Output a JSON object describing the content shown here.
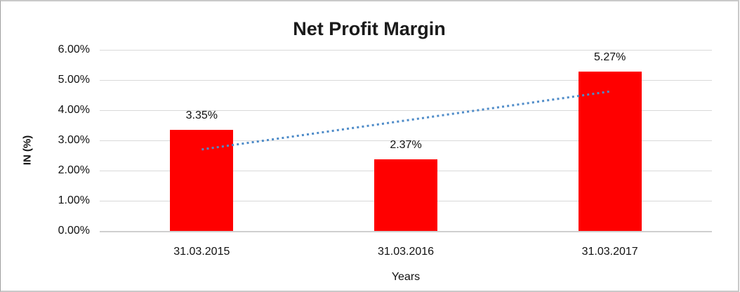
{
  "chart_data": {
    "type": "bar",
    "title": "Net Profit Margin",
    "categories": [
      "31.03.2015",
      "31.03.2016",
      "31.03.2017"
    ],
    "series": [
      {
        "name": "Net Profit Margin",
        "values": [
          3.35,
          2.37,
          5.27
        ]
      }
    ],
    "data_labels": [
      "3.35%",
      "2.37%",
      "5.27%"
    ],
    "xlabel": "Years",
    "ylabel": "IN (%)",
    "ylim": [
      0,
      6
    ],
    "ytick_step": 1,
    "ytick_labels": [
      "0.00%",
      "1.00%",
      "2.00%",
      "3.00%",
      "4.00%",
      "5.00%",
      "6.00%"
    ],
    "grid": true,
    "legend": "none",
    "trendline": {
      "type": "linear",
      "style": "dotted",
      "start_value": 2.7,
      "end_value": 4.62
    }
  },
  "colors": {
    "bar": "#FF0000",
    "trendline": "#4E8BC8",
    "gridline": "#D9D9D9",
    "text": "#111111"
  }
}
